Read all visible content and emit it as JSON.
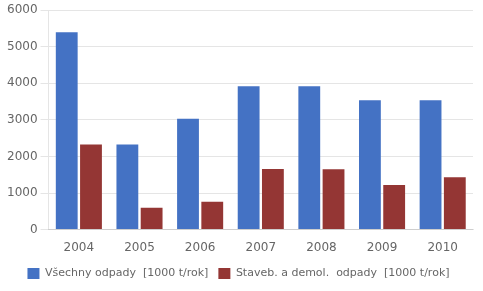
{
  "chart_data": {
    "type": "bar",
    "categories": [
      "2004",
      "2005",
      "2006",
      "2007",
      "2008",
      "2009",
      "2010"
    ],
    "series": [
      {
        "name": "Všechny odpady  [1000 t/rok]",
        "color": "#4472C4",
        "values": [
          5400,
          2330,
          3030,
          3920,
          3920,
          3540,
          3540
        ]
      },
      {
        "name": "Staveb. a demol.  odpady  [1000 t/rok]",
        "color": "#943634",
        "values": [
          2330,
          600,
          760,
          1660,
          1650,
          1220,
          1430
        ]
      }
    ],
    "ylim": [
      0,
      6000
    ],
    "yticks": [
      0,
      1000,
      2000,
      3000,
      4000,
      5000,
      6000
    ],
    "grid": "y",
    "legend": "bottom"
  }
}
